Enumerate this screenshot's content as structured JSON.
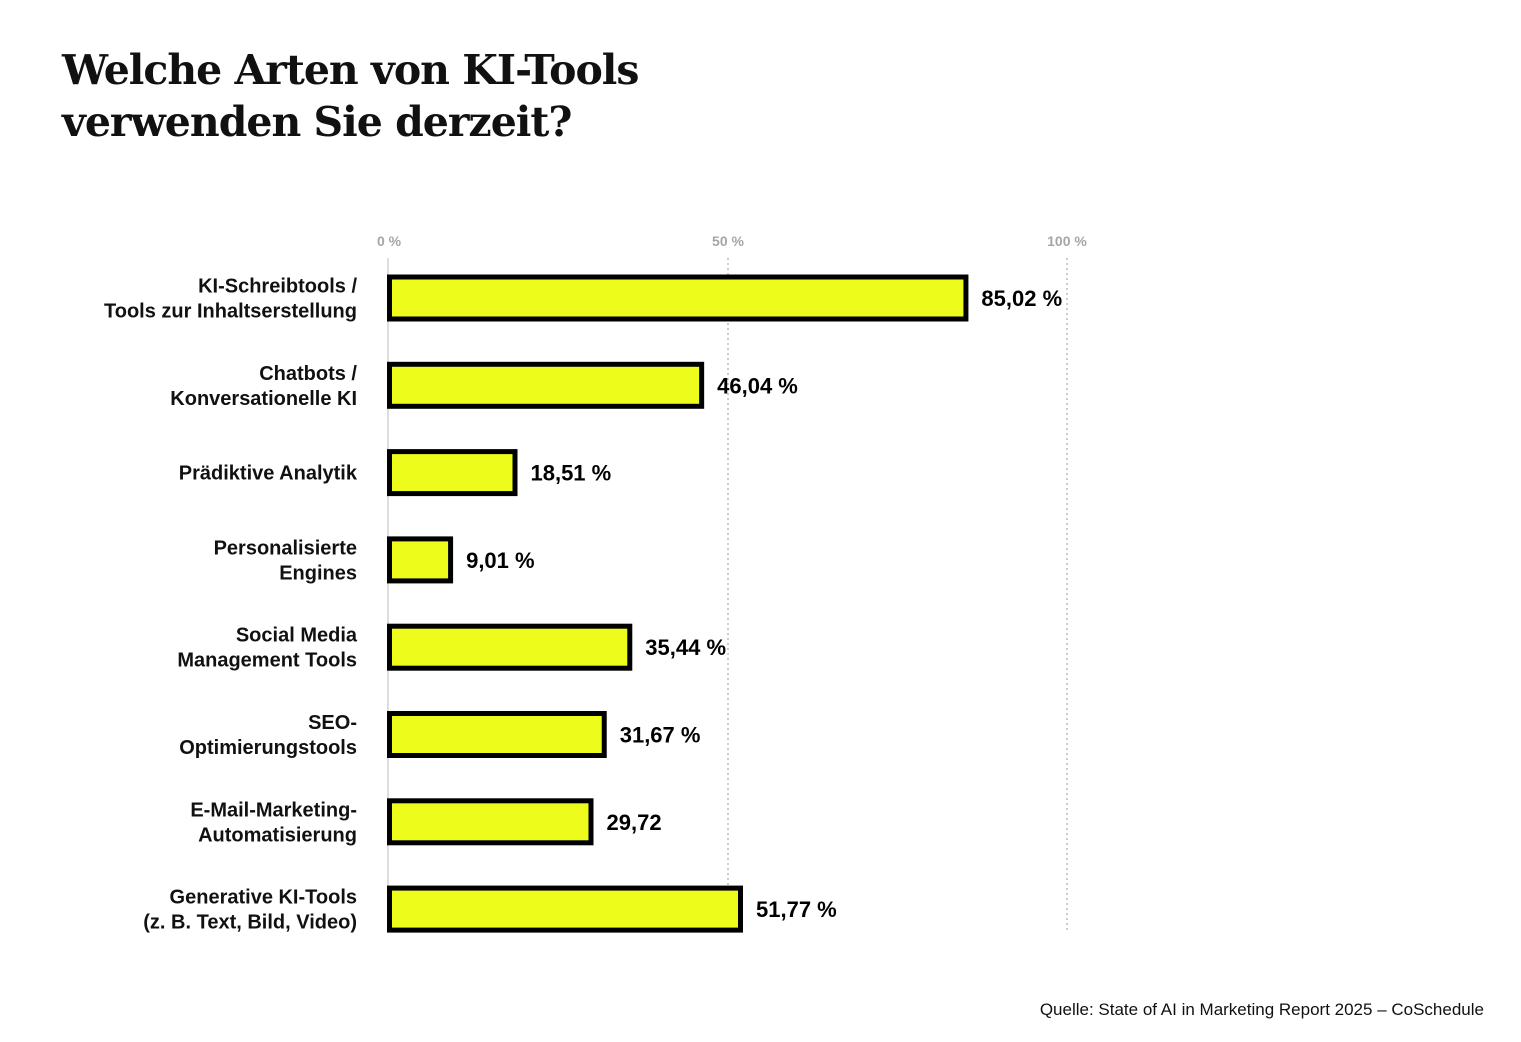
{
  "chart_data": {
    "type": "bar",
    "orientation": "horizontal",
    "title": [
      "Welche Arten von KI-Tools",
      "verwenden Sie derzeit?"
    ],
    "categories": [
      [
        "KI-Schreibtools /",
        "Tools zur Inhaltserstellung"
      ],
      [
        "Chatbots /",
        "Konversationelle KI"
      ],
      [
        "Prädiktive Analytik"
      ],
      [
        "Personalisierte",
        "Engines"
      ],
      [
        "Social Media",
        "Management Tools"
      ],
      [
        "SEO-",
        "Optimierungstools"
      ],
      [
        "E-Mail-Marketing-",
        "Automatisierung"
      ],
      [
        "Generative KI-Tools",
        "(z. B. Text, Bild, Video)"
      ]
    ],
    "values": [
      85.02,
      46.04,
      18.51,
      9.01,
      35.44,
      31.67,
      29.72,
      51.77
    ],
    "value_labels": [
      "85,02 %",
      "46,04 %",
      "18,51 %",
      "9,01 %",
      "35,44 %",
      "31,67 %",
      "29,72",
      "51,77 %"
    ],
    "xlim": [
      0,
      135
    ],
    "xticks": [
      0,
      50,
      100
    ],
    "xtick_labels": [
      "0 %",
      "50 %",
      "100 %"
    ],
    "grid": true,
    "bar_color": "#eefc1b",
    "bar_outline_color": "#000000",
    "source": "Quelle: State of AI in Marketing Report 2025 – CoSchedule"
  }
}
